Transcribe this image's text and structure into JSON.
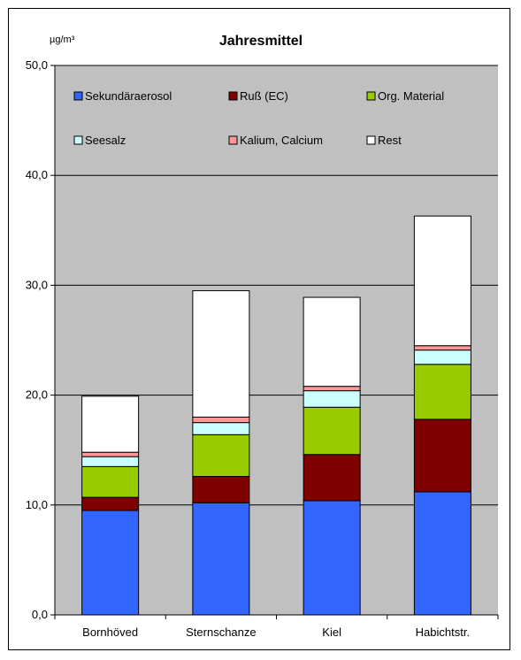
{
  "chart_data": {
    "type": "bar",
    "stacked": true,
    "title": "Jahresmittel",
    "unit_label": "µg/m³",
    "categories": [
      "Bornhöved",
      "Sternschanze",
      "Kiel",
      "Habichtstr."
    ],
    "ylim": [
      0,
      50
    ],
    "yticks": [
      "0,0",
      "10,0",
      "20,0",
      "30,0",
      "40,0",
      "50,0"
    ],
    "grid": true,
    "legend_position": "top",
    "plot_background": "#c0c0c0",
    "series": [
      {
        "name": "Sekundäraerosol",
        "color": "#3366ff",
        "values": [
          9.5,
          10.2,
          10.4,
          11.2
        ]
      },
      {
        "name": "Ruß (EC)",
        "color": "#800000",
        "values": [
          1.2,
          2.4,
          4.2,
          6.6
        ]
      },
      {
        "name": "Org. Material",
        "color": "#99cc00",
        "values": [
          2.8,
          3.8,
          4.3,
          5.0
        ]
      },
      {
        "name": "Seesalz",
        "color": "#ccffff",
        "values": [
          0.9,
          1.1,
          1.5,
          1.3
        ]
      },
      {
        "name": "Kalium, Calcium",
        "color": "#ff9999",
        "values": [
          0.4,
          0.5,
          0.4,
          0.4
        ]
      },
      {
        "name": "Rest",
        "color": "#ffffff",
        "values": [
          5.1,
          11.5,
          8.1,
          11.8
        ]
      }
    ]
  }
}
